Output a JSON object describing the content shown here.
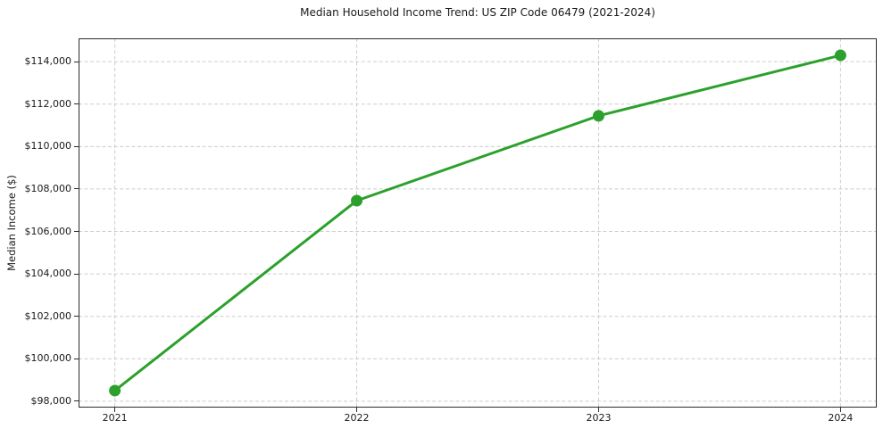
{
  "chart_data": {
    "type": "line",
    "title": "Median Household Income Trend: US ZIP Code 06479 (2021-2024)",
    "xlabel": "",
    "ylabel": "Median Income ($)",
    "x": [
      2021,
      2022,
      2023,
      2024
    ],
    "x_tick_labels": [
      "2021",
      "2022",
      "2023",
      "2024"
    ],
    "series": [
      {
        "name": "Median Household Income",
        "values": [
          98500,
          107450,
          111450,
          114300
        ]
      }
    ],
    "y_ticks": [
      98000,
      100000,
      102000,
      104000,
      106000,
      108000,
      110000,
      112000,
      114000
    ],
    "y_tick_labels": [
      "$98,000",
      "$100,000",
      "$102,000",
      "$104,000",
      "$106,000",
      "$108,000",
      "$110,000",
      "$112,000",
      "$114,000"
    ],
    "xlim": [
      2020.85,
      2024.15
    ],
    "ylim": [
      97700,
      115100
    ],
    "grid": "on",
    "grid_style": "dashed",
    "legend": "none",
    "colors": {
      "line": "#2ca02c",
      "marker": "#2ca02c",
      "grid": "#cccccc",
      "spine": "#2b2b2b",
      "text": "#1a1a1a",
      "background": "#ffffff"
    },
    "marker": "circle"
  }
}
